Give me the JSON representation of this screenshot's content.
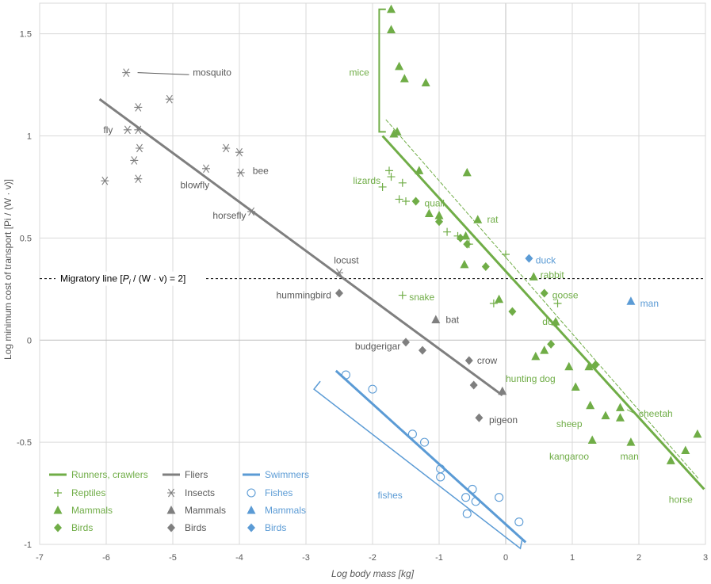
{
  "chart_data": {
    "type": "scatter",
    "title": "",
    "xlabel": "Log body mass [kg]",
    "ylabel": "Log minimum cost of transport [Pi / (W · v)]",
    "xlim": [
      -7,
      3
    ],
    "ylim": [
      -1,
      1.65
    ],
    "xticks": [
      -7,
      -6,
      -5,
      -4,
      -3,
      -2,
      -1,
      0,
      1,
      2,
      3
    ],
    "yticks": [
      -1,
      -0.5,
      0,
      0.5,
      1,
      1.5
    ],
    "grid": true,
    "legend_position": "bottom-left",
    "colors": {
      "runners": "#70ad47",
      "fliers": "#7f7f7f",
      "swimmers": "#5b9bd5",
      "axis": "#595959",
      "grid": "#d9d9d9"
    },
    "migratory_line": {
      "y": 0.301,
      "label_pre": "Migratory line [",
      "label_pi": "P",
      "label_sub": "i",
      "label_post": " / (W · v) = 2]"
    },
    "groups": [
      {
        "group": "Runners, crawlers",
        "color": "#70ad47",
        "fit": {
          "x": [
            -1.85,
            2.98
          ],
          "y": [
            1.0,
            -0.73
          ]
        },
        "fit2": {
          "x": [
            -1.8,
            2.9
          ],
          "y": [
            1.08,
            -0.68
          ]
        },
        "series": [
          {
            "name": "Reptiles",
            "marker": "plus",
            "x": [
              -1.75,
              -1.72,
              -1.85,
              -1.55,
              -1.6,
              -1.5,
              -0.88,
              -0.72,
              -0.55,
              -0.0,
              0.78,
              -0.18,
              -1.55
            ],
            "y": [
              0.83,
              0.8,
              0.75,
              0.77,
              0.69,
              0.68,
              0.53,
              0.51,
              0.47,
              0.42,
              0.18,
              0.18,
              0.22
            ]
          },
          {
            "name": "Mammals",
            "marker": "triangle",
            "x": [
              -1.72,
              -1.72,
              -1.6,
              -1.52,
              -1.2,
              -1.68,
              -1.63,
              -1.3,
              -0.58,
              -1.15,
              -1.0,
              -0.6,
              -0.42,
              -0.62,
              0.42,
              -0.1,
              0.75,
              0.58,
              0.45,
              0.95,
              1.05,
              1.25,
              1.5,
              1.72,
              1.72,
              1.27,
              1.3,
              1.88,
              2.48,
              2.7,
              2.88
            ],
            "y": [
              1.62,
              1.52,
              1.34,
              1.28,
              1.26,
              1.01,
              1.02,
              0.83,
              0.82,
              0.62,
              0.61,
              0.51,
              0.59,
              0.37,
              0.31,
              0.2,
              0.09,
              -0.05,
              -0.08,
              -0.13,
              -0.23,
              -0.13,
              -0.37,
              -0.38,
              -0.33,
              -0.32,
              -0.49,
              -0.5,
              -0.59,
              -0.54,
              -0.46
            ]
          },
          {
            "name": "Birds",
            "marker": "diamond",
            "x": [
              -1.35,
              -1.0,
              -0.58,
              -0.68,
              -0.3,
              0.1,
              0.58,
              0.68,
              1.35
            ],
            "y": [
              0.68,
              0.58,
              0.47,
              0.5,
              0.36,
              0.14,
              0.23,
              -0.02,
              -0.12
            ]
          }
        ]
      },
      {
        "group": "Fliers",
        "color": "#7f7f7f",
        "fit": {
          "x": [
            -6.1,
            -0.05
          ],
          "y": [
            1.18,
            -0.27
          ]
        },
        "series": [
          {
            "name": "Insects",
            "marker": "asterisk",
            "x": [
              -5.7,
              -5.52,
              -5.05,
              -5.68,
              -5.52,
              -5.5,
              -5.58,
              -5.52,
              -6.02,
              -4.5,
              -4.2,
              -4.0,
              -3.98,
              -3.82,
              -2.5
            ],
            "y": [
              1.31,
              1.14,
              1.18,
              1.03,
              1.03,
              0.94,
              0.88,
              0.79,
              0.78,
              0.84,
              0.94,
              0.92,
              0.82,
              0.63,
              0.33
            ]
          },
          {
            "name": "Mammals",
            "marker": "triangle",
            "x": [
              -1.05,
              -0.05
            ],
            "y": [
              0.1,
              -0.25
            ]
          },
          {
            "name": "Birds",
            "marker": "diamond",
            "x": [
              -2.5,
              -1.5,
              -1.25,
              -0.55,
              -0.48,
              -0.4
            ],
            "y": [
              0.23,
              -0.01,
              -0.05,
              -0.1,
              -0.22,
              -0.38
            ]
          }
        ]
      },
      {
        "group": "Swimmers",
        "color": "#5b9bd5",
        "fit": {
          "x": [
            -2.55,
            0.3
          ],
          "y": [
            -0.15,
            -0.99
          ]
        },
        "series": [
          {
            "name": "Fishes",
            "marker": "circle",
            "x": [
              -2.4,
              -2.0,
              -1.4,
              -1.22,
              -0.98,
              -0.98,
              -0.6,
              -0.5,
              -0.45,
              -0.58,
              -0.1,
              0.2
            ],
            "y": [
              -0.17,
              -0.24,
              -0.46,
              -0.5,
              -0.63,
              -0.67,
              -0.77,
              -0.73,
              -0.79,
              -0.85,
              -0.77,
              -0.89
            ]
          },
          {
            "name": "Mammals",
            "marker": "triangle",
            "x": [
              1.88
            ],
            "y": [
              0.19
            ]
          },
          {
            "name": "Birds",
            "marker": "diamond",
            "x": [
              0.35
            ],
            "y": [
              0.4
            ]
          }
        ]
      }
    ],
    "annotations": [
      {
        "text": "mosquito",
        "x": -4.7,
        "y": 1.31,
        "color": "#595959",
        "anchor": "start",
        "leader": [
          -5.6,
          1.31,
          -4.72,
          1.3
        ]
      },
      {
        "text": "fly",
        "x": -5.9,
        "y": 1.03,
        "color": "#595959",
        "anchor": "end"
      },
      {
        "text": "blowfly",
        "x": -4.45,
        "y": 0.76,
        "color": "#595959",
        "anchor": "end"
      },
      {
        "text": "bee",
        "x": -3.8,
        "y": 0.83,
        "color": "#595959",
        "anchor": "start"
      },
      {
        "text": "horsefly",
        "x": -3.9,
        "y": 0.61,
        "color": "#595959",
        "anchor": "end"
      },
      {
        "text": "locust",
        "x": -2.58,
        "y": 0.39,
        "color": "#595959",
        "anchor": "start"
      },
      {
        "text": "hummingbird",
        "x": -2.62,
        "y": 0.22,
        "color": "#595959",
        "anchor": "end"
      },
      {
        "text": "bat",
        "x": -0.9,
        "y": 0.1,
        "color": "#595959",
        "anchor": "start"
      },
      {
        "text": "budgerigar",
        "x": -1.58,
        "y": -0.03,
        "color": "#595959",
        "anchor": "end"
      },
      {
        "text": "crow",
        "x": -0.43,
        "y": -0.1,
        "color": "#595959",
        "anchor": "start"
      },
      {
        "text": "pigeon",
        "x": -0.25,
        "y": -0.39,
        "color": "#595959",
        "anchor": "start"
      },
      {
        "text": "mice",
        "x": -2.05,
        "y": 1.31,
        "color": "#70ad47",
        "anchor": "end"
      },
      {
        "text": "lizards",
        "x": -1.88,
        "y": 0.78,
        "color": "#70ad47",
        "anchor": "end"
      },
      {
        "text": "quail",
        "x": -1.22,
        "y": 0.67,
        "color": "#70ad47",
        "anchor": "start"
      },
      {
        "text": "rat",
        "x": -0.28,
        "y": 0.59,
        "color": "#70ad47",
        "anchor": "start"
      },
      {
        "text": "snake",
        "x": -1.45,
        "y": 0.21,
        "color": "#70ad47",
        "anchor": "start"
      },
      {
        "text": "rabbit",
        "x": 0.52,
        "y": 0.32,
        "color": "#70ad47",
        "anchor": "start"
      },
      {
        "text": "goose",
        "x": 0.7,
        "y": 0.22,
        "color": "#70ad47",
        "anchor": "start"
      },
      {
        "text": "dog",
        "x": 0.55,
        "y": 0.09,
        "color": "#70ad47",
        "anchor": "start"
      },
      {
        "text": "hunting dog",
        "x": 0.0,
        "y": -0.19,
        "color": "#70ad47",
        "anchor": "start"
      },
      {
        "text": "sheep",
        "x": 1.15,
        "y": -0.41,
        "color": "#70ad47",
        "anchor": "end"
      },
      {
        "text": "cheetah",
        "x": 2.0,
        "y": -0.36,
        "color": "#70ad47",
        "anchor": "start",
        "leader": [
          1.75,
          -0.34,
          1.98,
          -0.36
        ]
      },
      {
        "text": "kangaroo",
        "x": 1.25,
        "y": -0.57,
        "color": "#70ad47",
        "anchor": "end"
      },
      {
        "text": "man",
        "x": 1.72,
        "y": -0.57,
        "color": "#70ad47",
        "anchor": "start"
      },
      {
        "text": "horse",
        "x": 2.45,
        "y": -0.78,
        "color": "#70ad47",
        "anchor": "start"
      },
      {
        "text": "duck",
        "x": 0.45,
        "y": 0.39,
        "color": "#5b9bd5",
        "anchor": "start"
      },
      {
        "text": "man",
        "x": 2.02,
        "y": 0.18,
        "color": "#5b9bd5",
        "anchor": "start"
      },
      {
        "text": "fishes",
        "x": -1.55,
        "y": -0.76,
        "color": "#5b9bd5",
        "anchor": "end"
      }
    ],
    "legend": {
      "columns": [
        {
          "line": "Runners, crawlers",
          "color": "#70ad47",
          "items": [
            "Reptiles",
            "Mammals",
            "Birds"
          ],
          "markers": [
            "plus",
            "triangle",
            "diamond"
          ]
        },
        {
          "line": "Fliers",
          "color": "#7f7f7f",
          "items": [
            "Insects",
            "Mammals",
            "Birds"
          ],
          "markers": [
            "asterisk",
            "triangle",
            "diamond"
          ]
        },
        {
          "line": "Swimmers",
          "color": "#5b9bd5",
          "items": [
            "Fishes",
            "Mammals",
            "Birds"
          ],
          "markers": [
            "circle",
            "triangle",
            "diamond"
          ]
        }
      ]
    }
  }
}
